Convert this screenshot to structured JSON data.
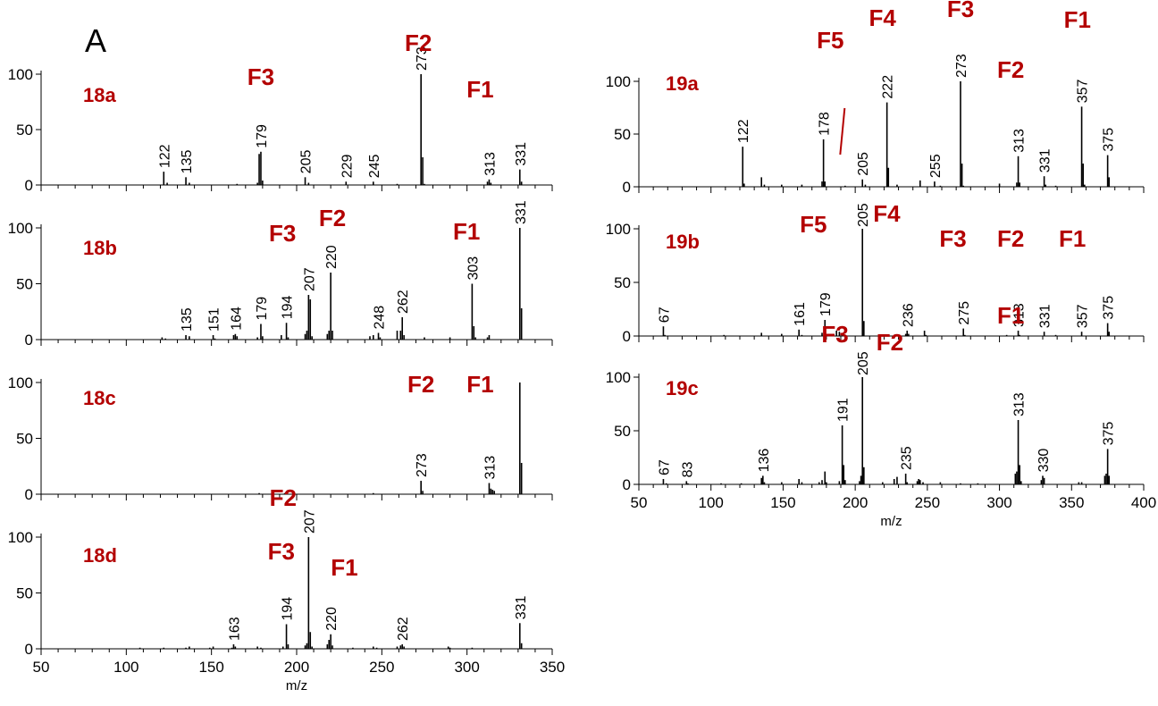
{
  "panel_letter": "A",
  "colors": {
    "annotation": "#b30000",
    "axis": "#000000",
    "peak": "#000000"
  },
  "chart_data": [
    {
      "id": "18a",
      "type": "bar",
      "label": "18a",
      "xlim": [
        50,
        350
      ],
      "ylim": [
        0,
        100
      ],
      "yticks": [
        0,
        50,
        100
      ],
      "peaks": [
        [
          122,
          12
        ],
        [
          124,
          2
        ],
        [
          135,
          7
        ],
        [
          137,
          2
        ],
        [
          165,
          1
        ],
        [
          177,
          2
        ],
        [
          178,
          28
        ],
        [
          179,
          30
        ],
        [
          180,
          4
        ],
        [
          205,
          7
        ],
        [
          207,
          2
        ],
        [
          229,
          3
        ],
        [
          245,
          3
        ],
        [
          259,
          1
        ],
        [
          273,
          100
        ],
        [
          274,
          25
        ],
        [
          275,
          1
        ],
        [
          312,
          3
        ],
        [
          313,
          5
        ],
        [
          314,
          2
        ],
        [
          331,
          14
        ],
        [
          332,
          3
        ]
      ],
      "peak_labels": [
        [
          122,
          "122"
        ],
        [
          135,
          "135"
        ],
        [
          179,
          "179"
        ],
        [
          205,
          "205"
        ],
        [
          229,
          "229"
        ],
        [
          245,
          "245"
        ],
        [
          273,
          "273"
        ],
        [
          313,
          "313"
        ],
        [
          331,
          "331"
        ]
      ],
      "fragments": [
        {
          "text": "F3",
          "x": 179
        },
        {
          "text": "F2",
          "x": 273
        },
        {
          "text": "F1",
          "x": 313
        }
      ]
    },
    {
      "id": "18b",
      "type": "bar",
      "label": "18b",
      "xlim": [
        50,
        350
      ],
      "ylim": [
        0,
        100
      ],
      "yticks": [
        0,
        50,
        100
      ],
      "peaks": [
        [
          121,
          2
        ],
        [
          123,
          1
        ],
        [
          135,
          4
        ],
        [
          137,
          3
        ],
        [
          151,
          4
        ],
        [
          152,
          1
        ],
        [
          163,
          4
        ],
        [
          164,
          5
        ],
        [
          165,
          3
        ],
        [
          177,
          2
        ],
        [
          179,
          14
        ],
        [
          180,
          3
        ],
        [
          191,
          4
        ],
        [
          194,
          15
        ],
        [
          195,
          2
        ],
        [
          205,
          5
        ],
        [
          206,
          8
        ],
        [
          207,
          40
        ],
        [
          208,
          36
        ],
        [
          209,
          3
        ],
        [
          218,
          5
        ],
        [
          219,
          8
        ],
        [
          220,
          60
        ],
        [
          221,
          8
        ],
        [
          243,
          3
        ],
        [
          245,
          4
        ],
        [
          248,
          6
        ],
        [
          249,
          2
        ],
        [
          259,
          8
        ],
        [
          261,
          8
        ],
        [
          262,
          20
        ],
        [
          263,
          4
        ],
        [
          275,
          2
        ],
        [
          290,
          2
        ],
        [
          303,
          50
        ],
        [
          304,
          12
        ],
        [
          305,
          2
        ],
        [
          312,
          2
        ],
        [
          313,
          4
        ],
        [
          331,
          100
        ],
        [
          332,
          28
        ]
      ],
      "peak_labels": [
        [
          135,
          "135"
        ],
        [
          151,
          "151"
        ],
        [
          164,
          "164"
        ],
        [
          179,
          "179"
        ],
        [
          194,
          "194"
        ],
        [
          207,
          "207"
        ],
        [
          220,
          "220"
        ],
        [
          248,
          "248"
        ],
        [
          262,
          "262"
        ],
        [
          303,
          "303"
        ],
        [
          331,
          "331"
        ]
      ],
      "fragments": [
        {
          "text": "F3",
          "x": 198
        },
        {
          "text": "F2",
          "x": 221
        },
        {
          "text": "F1",
          "x": 305
        }
      ]
    },
    {
      "id": "18c",
      "type": "bar",
      "label": "18c",
      "xlim": [
        50,
        350
      ],
      "ylim": [
        0,
        100
      ],
      "yticks": [
        0,
        50,
        100
      ],
      "peaks": [
        [
          178,
          1
        ],
        [
          193,
          1
        ],
        [
          245,
          1
        ],
        [
          273,
          12
        ],
        [
          274,
          3
        ],
        [
          313,
          10
        ],
        [
          314,
          5
        ],
        [
          315,
          4
        ],
        [
          316,
          3
        ],
        [
          331,
          100
        ],
        [
          332,
          28
        ]
      ],
      "peak_labels": [
        [
          273,
          "273"
        ],
        [
          313,
          "313"
        ]
      ],
      "fragments": [
        {
          "text": "F2",
          "x": 273
        },
        {
          "text": "F1",
          "x": 313
        }
      ]
    },
    {
      "id": "18d",
      "type": "bar",
      "label": "18d",
      "xlim": [
        50,
        350
      ],
      "ylim": [
        0,
        100
      ],
      "yticks": [
        0,
        50,
        100
      ],
      "peaks": [
        [
          108,
          1
        ],
        [
          122,
          1
        ],
        [
          135,
          1
        ],
        [
          137,
          2
        ],
        [
          149,
          1
        ],
        [
          151,
          2
        ],
        [
          162,
          1
        ],
        [
          163,
          4
        ],
        [
          164,
          2
        ],
        [
          177,
          2
        ],
        [
          179,
          1
        ],
        [
          192,
          2
        ],
        [
          194,
          22
        ],
        [
          195,
          4
        ],
        [
          205,
          3
        ],
        [
          206,
          5
        ],
        [
          207,
          100
        ],
        [
          208,
          15
        ],
        [
          209,
          2
        ],
        [
          218,
          4
        ],
        [
          219,
          8
        ],
        [
          220,
          13
        ],
        [
          221,
          3
        ],
        [
          233,
          1
        ],
        [
          245,
          2
        ],
        [
          247,
          1
        ],
        [
          259,
          2
        ],
        [
          261,
          3
        ],
        [
          262,
          4
        ],
        [
          263,
          2
        ],
        [
          289,
          2
        ],
        [
          290,
          1
        ],
        [
          303,
          1
        ],
        [
          331,
          23
        ],
        [
          332,
          5
        ]
      ],
      "peak_labels": [
        [
          163,
          "163"
        ],
        [
          194,
          "194"
        ],
        [
          207,
          "207"
        ],
        [
          220,
          "220"
        ],
        [
          262,
          "262"
        ],
        [
          331,
          "331"
        ]
      ],
      "fragments": [
        {
          "text": "F2",
          "x": 192
        },
        {
          "text": "F3",
          "x": 191
        },
        {
          "text": "F1",
          "x": 228
        }
      ],
      "xticks": [
        50,
        100,
        150,
        200,
        250,
        300,
        350
      ],
      "xlabel": "m/z"
    },
    {
      "id": "19a",
      "type": "bar",
      "label": "19a",
      "xlim": [
        50,
        400
      ],
      "ylim": [
        0,
        100
      ],
      "yticks": [
        0,
        50,
        100
      ],
      "peaks": [
        [
          122,
          38
        ],
        [
          123,
          3
        ],
        [
          135,
          9
        ],
        [
          137,
          2
        ],
        [
          149,
          2
        ],
        [
          163,
          2
        ],
        [
          177,
          5
        ],
        [
          178,
          45
        ],
        [
          179,
          5
        ],
        [
          193,
          1
        ],
        [
          205,
          7
        ],
        [
          207,
          2
        ],
        [
          222,
          80
        ],
        [
          223,
          18
        ],
        [
          229,
          2
        ],
        [
          245,
          6
        ],
        [
          255,
          5
        ],
        [
          259,
          1
        ],
        [
          273,
          100
        ],
        [
          274,
          22
        ],
        [
          275,
          1
        ],
        [
          300,
          3
        ],
        [
          312,
          4
        ],
        [
          313,
          29
        ],
        [
          314,
          4
        ],
        [
          331,
          10
        ],
        [
          332,
          2
        ],
        [
          339,
          1
        ],
        [
          357,
          76
        ],
        [
          358,
          22
        ],
        [
          359,
          2
        ],
        [
          375,
          30
        ],
        [
          376,
          9
        ]
      ],
      "peak_labels": [
        [
          122,
          "122"
        ],
        [
          178,
          "178"
        ],
        [
          205,
          "205"
        ],
        [
          222,
          "222"
        ],
        [
          255,
          "255"
        ],
        [
          273,
          "273"
        ],
        [
          313,
          "313"
        ],
        [
          331,
          "331"
        ],
        [
          357,
          "357"
        ],
        [
          375,
          "375"
        ]
      ],
      "fragments": [
        {
          "text": "F5",
          "x": 184
        },
        {
          "text": "F4",
          "x": 222
        },
        {
          "text": "F3",
          "x": 273
        },
        {
          "text": "F2",
          "x": 314
        },
        {
          "text": "F1",
          "x": 359
        }
      ]
    },
    {
      "id": "19b",
      "type": "bar",
      "label": "19b",
      "xlim": [
        50,
        400
      ],
      "ylim": [
        0,
        100
      ],
      "yticks": [
        0,
        50,
        100
      ],
      "peaks": [
        [
          67,
          9
        ],
        [
          68,
          1
        ],
        [
          109,
          1
        ],
        [
          135,
          3
        ],
        [
          149,
          2
        ],
        [
          161,
          6
        ],
        [
          163,
          1
        ],
        [
          177,
          3
        ],
        [
          179,
          15
        ],
        [
          180,
          2
        ],
        [
          187,
          5
        ],
        [
          189,
          4
        ],
        [
          205,
          100
        ],
        [
          206,
          14
        ],
        [
          219,
          1
        ],
        [
          235,
          2
        ],
        [
          236,
          5
        ],
        [
          237,
          2
        ],
        [
          248,
          5
        ],
        [
          249,
          1
        ],
        [
          275,
          7
        ],
        [
          276,
          1
        ],
        [
          305,
          1
        ],
        [
          313,
          5
        ],
        [
          314,
          1
        ],
        [
          331,
          4
        ],
        [
          339,
          1
        ],
        [
          357,
          4
        ],
        [
          375,
          12
        ],
        [
          376,
          4
        ]
      ],
      "peak_labels": [
        [
          67,
          "67"
        ],
        [
          161,
          "161"
        ],
        [
          179,
          "179"
        ],
        [
          236,
          "236"
        ],
        [
          275,
          "275"
        ],
        [
          313,
          "313"
        ],
        [
          331,
          "331"
        ],
        [
          357,
          "357"
        ],
        [
          375,
          "375"
        ]
      ],
      "fragments": [
        {
          "text": "F5",
          "x": 171
        },
        {
          "text": "F3",
          "x": 274
        },
        {
          "text": "F2",
          "x": 314
        },
        {
          "text": "F1",
          "x": 358
        }
      ],
      "top_label": {
        "peak": "205",
        "fragment": "F4",
        "x": 205
      }
    },
    {
      "id": "19c",
      "type": "bar",
      "label": "19c",
      "xlim": [
        50,
        400
      ],
      "ylim": [
        0,
        100
      ],
      "yticks": [
        0,
        50,
        100
      ],
      "peaks": [
        [
          67,
          5
        ],
        [
          69,
          1
        ],
        [
          83,
          3
        ],
        [
          84,
          1
        ],
        [
          107,
          1
        ],
        [
          121,
          1
        ],
        [
          135,
          6
        ],
        [
          136,
          8
        ],
        [
          137,
          2
        ],
        [
          149,
          2
        ],
        [
          161,
          5
        ],
        [
          163,
          2
        ],
        [
          175,
          2
        ],
        [
          177,
          4
        ],
        [
          179,
          12
        ],
        [
          180,
          2
        ],
        [
          189,
          3
        ],
        [
          191,
          55
        ],
        [
          192,
          18
        ],
        [
          193,
          4
        ],
        [
          203,
          3
        ],
        [
          204,
          8
        ],
        [
          205,
          100
        ],
        [
          206,
          16
        ],
        [
          219,
          2
        ],
        [
          227,
          5
        ],
        [
          229,
          7
        ],
        [
          235,
          10
        ],
        [
          236,
          2
        ],
        [
          243,
          3
        ],
        [
          244,
          5
        ],
        [
          245,
          4
        ],
        [
          247,
          2
        ],
        [
          259,
          2
        ],
        [
          273,
          1
        ],
        [
          285,
          1
        ],
        [
          311,
          10
        ],
        [
          312,
          12
        ],
        [
          313,
          60
        ],
        [
          314,
          18
        ],
        [
          315,
          3
        ],
        [
          329,
          4
        ],
        [
          330,
          8
        ],
        [
          331,
          6
        ],
        [
          355,
          2
        ],
        [
          357,
          2
        ],
        [
          373,
          8
        ],
        [
          374,
          10
        ],
        [
          375,
          33
        ],
        [
          376,
          8
        ]
      ],
      "peak_labels": [
        [
          67,
          "67"
        ],
        [
          83,
          "83"
        ],
        [
          136,
          "136"
        ],
        [
          191,
          "191"
        ],
        [
          235,
          "235"
        ],
        [
          313,
          "313"
        ],
        [
          330,
          "330"
        ],
        [
          375,
          "375"
        ]
      ],
      "fragments": [
        {
          "text": "F3",
          "x": 186
        },
        {
          "text": "F2",
          "x": 224
        },
        {
          "text": "F1",
          "x": 314
        }
      ],
      "top_label": {
        "peak": "205",
        "x": 205
      },
      "xticks": [
        50,
        100,
        150,
        200,
        250,
        300,
        350,
        400
      ],
      "xlabel": "m/z"
    }
  ]
}
